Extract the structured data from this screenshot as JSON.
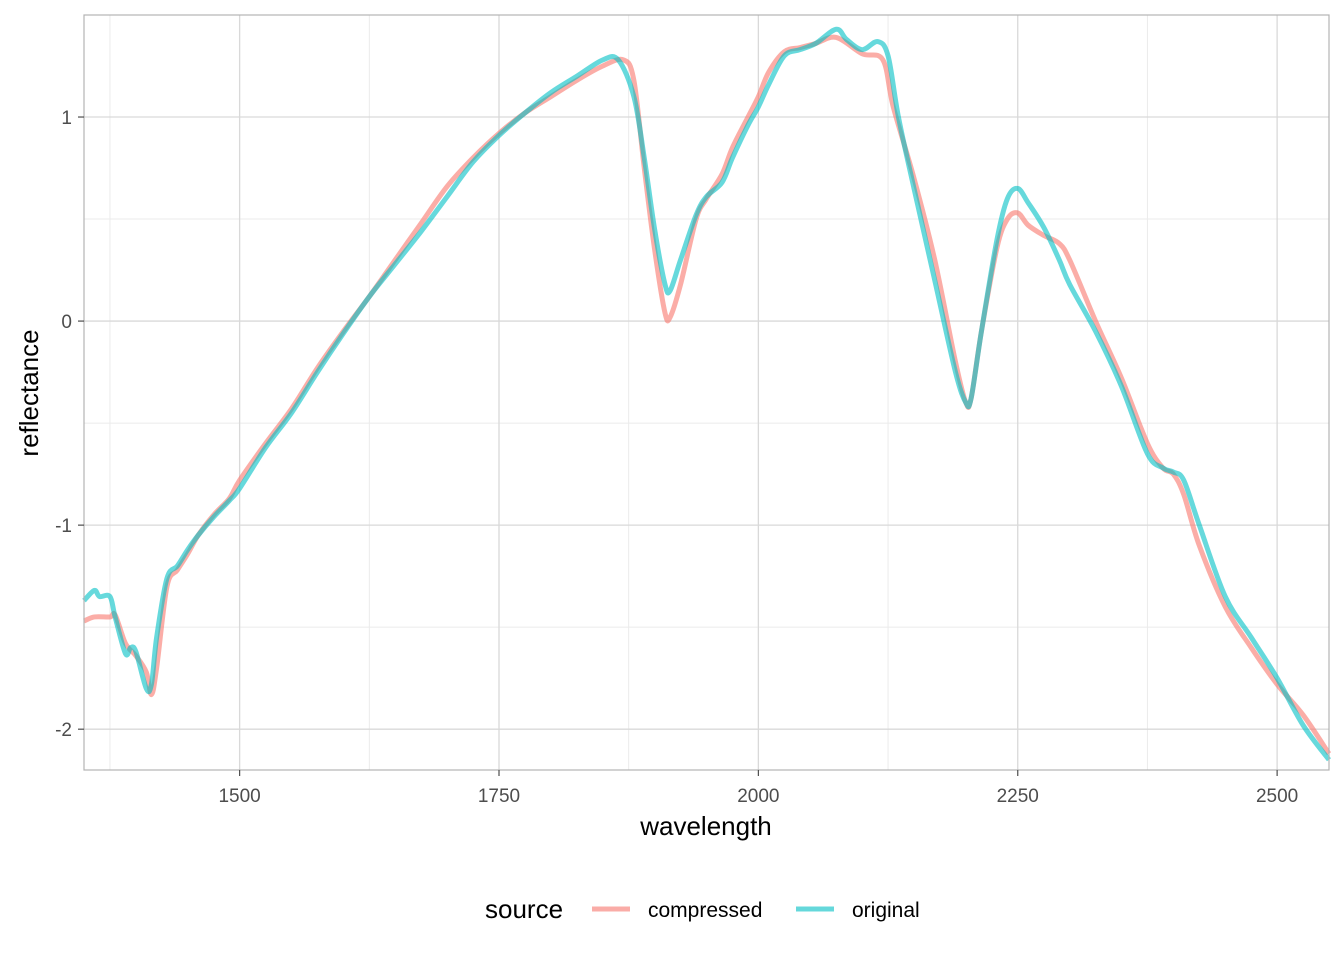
{
  "chart_data": {
    "type": "line",
    "xlabel": "wavelength",
    "ylabel": "reflectance",
    "xlim": [
      1350,
      2550
    ],
    "ylim": [
      -2.2,
      1.5
    ],
    "x_ticks": [
      1500,
      1750,
      2000,
      2250,
      2500
    ],
    "y_ticks": [
      -2,
      -1,
      0,
      1
    ],
    "grid": true,
    "legend": {
      "title": "source",
      "position": "bottom",
      "entries": [
        "compressed",
        "original"
      ]
    },
    "series": [
      {
        "name": "compressed",
        "color": "#F8766D",
        "x": [
          1350,
          1360,
          1375,
          1380,
          1390,
          1400,
          1410,
          1415,
          1420,
          1430,
          1440,
          1450,
          1460,
          1475,
          1490,
          1500,
          1525,
          1550,
          1575,
          1600,
          1625,
          1650,
          1675,
          1700,
          1725,
          1750,
          1775,
          1800,
          1825,
          1850,
          1870,
          1880,
          1890,
          1900,
          1910,
          1915,
          1925,
          1940,
          1950,
          1965,
          1975,
          1990,
          2000,
          2010,
          2025,
          2040,
          2055,
          2075,
          2100,
          2120,
          2130,
          2150,
          2170,
          2190,
          2200,
          2205,
          2215,
          2230,
          2240,
          2250,
          2260,
          2275,
          2290,
          2300,
          2325,
          2350,
          2375,
          2390,
          2400,
          2410,
          2425,
          2450,
          2475,
          2500,
          2525,
          2550
        ],
        "y": [
          -1.47,
          -1.45,
          -1.45,
          -1.44,
          -1.58,
          -1.64,
          -1.72,
          -1.83,
          -1.7,
          -1.3,
          -1.22,
          -1.14,
          -1.05,
          -0.95,
          -0.87,
          -0.78,
          -0.6,
          -0.43,
          -0.23,
          -0.05,
          0.12,
          0.3,
          0.48,
          0.66,
          0.8,
          0.92,
          1.02,
          1.1,
          1.18,
          1.25,
          1.28,
          1.18,
          0.75,
          0.35,
          0.04,
          0.02,
          0.18,
          0.5,
          0.6,
          0.72,
          0.85,
          1.0,
          1.1,
          1.22,
          1.32,
          1.34,
          1.36,
          1.39,
          1.31,
          1.28,
          1.05,
          0.7,
          0.3,
          -0.2,
          -0.4,
          -0.38,
          -0.05,
          0.36,
          0.5,
          0.53,
          0.47,
          0.42,
          0.38,
          0.3,
          0.0,
          -0.28,
          -0.6,
          -0.72,
          -0.75,
          -0.85,
          -1.1,
          -1.4,
          -1.6,
          -1.78,
          -1.93,
          -2.12
        ]
      },
      {
        "name": "original",
        "color": "#00BFC4",
        "x": [
          1350,
          1360,
          1365,
          1375,
          1380,
          1390,
          1395,
          1400,
          1410,
          1415,
          1420,
          1430,
          1440,
          1450,
          1460,
          1475,
          1490,
          1500,
          1525,
          1550,
          1575,
          1600,
          1625,
          1650,
          1675,
          1700,
          1725,
          1750,
          1775,
          1800,
          1825,
          1850,
          1865,
          1880,
          1890,
          1900,
          1910,
          1915,
          1925,
          1940,
          1950,
          1965,
          1975,
          1990,
          2000,
          2010,
          2025,
          2040,
          2055,
          2075,
          2085,
          2100,
          2115,
          2125,
          2135,
          2150,
          2170,
          2190,
          2200,
          2205,
          2215,
          2230,
          2240,
          2250,
          2260,
          2275,
          2290,
          2300,
          2325,
          2350,
          2375,
          2390,
          2400,
          2410,
          2425,
          2450,
          2475,
          2500,
          2525,
          2550
        ],
        "y": [
          -1.37,
          -1.32,
          -1.35,
          -1.35,
          -1.45,
          -1.63,
          -1.6,
          -1.62,
          -1.8,
          -1.78,
          -1.55,
          -1.26,
          -1.2,
          -1.12,
          -1.05,
          -0.96,
          -0.88,
          -0.82,
          -0.62,
          -0.45,
          -0.25,
          -0.06,
          0.12,
          0.28,
          0.44,
          0.61,
          0.78,
          0.91,
          1.02,
          1.12,
          1.2,
          1.28,
          1.28,
          1.1,
          0.8,
          0.45,
          0.18,
          0.15,
          0.3,
          0.52,
          0.61,
          0.68,
          0.8,
          0.96,
          1.05,
          1.16,
          1.3,
          1.33,
          1.36,
          1.43,
          1.38,
          1.33,
          1.37,
          1.3,
          1.0,
          0.65,
          0.2,
          -0.25,
          -0.4,
          -0.38,
          -0.05,
          0.4,
          0.6,
          0.65,
          0.58,
          0.46,
          0.3,
          0.18,
          -0.05,
          -0.32,
          -0.65,
          -0.72,
          -0.74,
          -0.78,
          -1.0,
          -1.35,
          -1.55,
          -1.75,
          -1.98,
          -2.15
        ]
      }
    ]
  }
}
